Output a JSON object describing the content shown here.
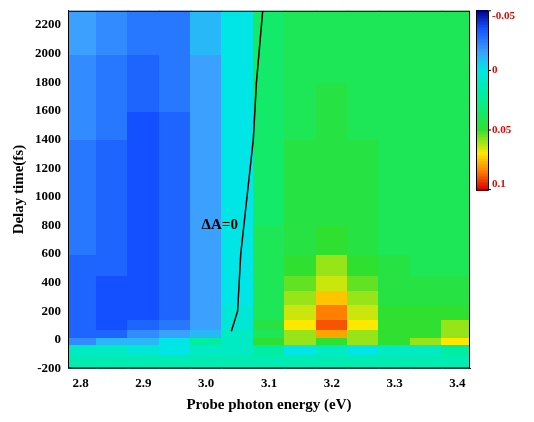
{
  "chart_data": {
    "type": "heatmap",
    "x_label": "Probe photon energy (eV)",
    "y_label": "Delay time(fs)",
    "xlim": [
      2.78,
      3.42
    ],
    "xticks": [
      2.8,
      2.9,
      {
        "value": 3,
        "label": "3.0"
      },
      3.1,
      3.2,
      3.3,
      3.4
    ],
    "ylim": [
      -200,
      2300
    ],
    "yticks": [
      -200,
      0,
      200,
      400,
      600,
      800,
      1000,
      1200,
      1400,
      1600,
      1800,
      2000,
      2200
    ],
    "x": [
      2.8,
      2.85,
      2.9,
      2.95,
      3.0,
      3.05,
      3.1,
      3.15,
      3.2,
      3.25,
      3.3,
      3.35,
      3.4
    ],
    "y": [
      -150,
      -50,
      0,
      50,
      100,
      200,
      300,
      400,
      500,
      700,
      900,
      1100,
      1300,
      1500,
      1700,
      1900,
      2100,
      2250
    ],
    "z": [
      [
        0.015,
        0.015,
        0.015,
        0.015,
        0.015,
        0.015,
        0.015,
        0.015,
        0.015,
        0.015,
        0.015,
        0.015,
        0.015
      ],
      [
        0.01,
        0.01,
        0.005,
        0.0,
        0.01,
        0.01,
        0.02,
        0.0,
        0.01,
        0.0,
        0.01,
        0.01,
        0.02
      ],
      [
        -0.02,
        -0.01,
        -0.01,
        0.0,
        0.02,
        0.01,
        0.05,
        0.06,
        0.05,
        0.06,
        0.05,
        0.06,
        0.07
      ],
      [
        -0.03,
        -0.03,
        -0.02,
        -0.015,
        -0.01,
        0.01,
        0.04,
        0.06,
        0.08,
        0.06,
        0.05,
        0.05,
        0.06
      ],
      [
        -0.03,
        -0.035,
        -0.03,
        -0.025,
        -0.015,
        0.005,
        0.045,
        0.07,
        0.09,
        0.07,
        0.05,
        0.05,
        0.06
      ],
      [
        -0.03,
        -0.035,
        -0.035,
        -0.03,
        -0.015,
        0.005,
        0.04,
        0.065,
        0.085,
        0.065,
        0.05,
        0.05,
        0.05
      ],
      [
        -0.03,
        -0.035,
        -0.035,
        -0.03,
        -0.015,
        0.0,
        0.04,
        0.06,
        0.075,
        0.06,
        0.045,
        0.045,
        0.045
      ],
      [
        -0.03,
        -0.035,
        -0.035,
        -0.03,
        -0.015,
        0.0,
        0.04,
        0.055,
        0.065,
        0.055,
        0.045,
        0.045,
        0.045
      ],
      [
        -0.03,
        -0.03,
        -0.035,
        -0.03,
        -0.015,
        0.0,
        0.04,
        0.05,
        0.06,
        0.05,
        0.045,
        0.04,
        0.04
      ],
      [
        -0.025,
        -0.03,
        -0.035,
        -0.03,
        -0.015,
        0.0,
        0.04,
        0.045,
        0.05,
        0.045,
        0.04,
        0.04,
        0.04
      ],
      [
        -0.025,
        -0.03,
        -0.035,
        -0.03,
        -0.015,
        0.0,
        0.035,
        0.045,
        0.045,
        0.045,
        0.04,
        0.04,
        0.04
      ],
      [
        -0.025,
        -0.03,
        -0.035,
        -0.03,
        -0.015,
        0.0,
        0.035,
        0.045,
        0.045,
        0.045,
        0.04,
        0.04,
        0.04
      ],
      [
        -0.025,
        -0.03,
        -0.035,
        -0.03,
        -0.015,
        0.0,
        0.035,
        0.045,
        0.045,
        0.045,
        0.04,
        0.04,
        0.04
      ],
      [
        -0.02,
        -0.025,
        -0.035,
        -0.03,
        -0.015,
        0.0,
        0.035,
        0.04,
        0.045,
        0.04,
        0.04,
        0.04,
        0.04
      ],
      [
        -0.02,
        -0.025,
        -0.03,
        -0.025,
        -0.015,
        0.0,
        0.035,
        0.04,
        0.045,
        0.04,
        0.04,
        0.04,
        0.04
      ],
      [
        -0.02,
        -0.025,
        -0.03,
        -0.025,
        -0.015,
        0.0,
        0.035,
        0.04,
        0.04,
        0.04,
        0.04,
        0.04,
        0.04
      ],
      [
        -0.015,
        -0.02,
        -0.025,
        -0.025,
        -0.01,
        0.0,
        0.035,
        0.04,
        0.04,
        0.04,
        0.04,
        0.04,
        0.04
      ],
      [
        -0.015,
        -0.02,
        -0.025,
        -0.025,
        -0.01,
        0.0,
        0.035,
        0.04,
        0.04,
        0.04,
        0.04,
        0.04,
        0.04
      ]
    ],
    "colorbar": {
      "range": [
        -0.05,
        0.1
      ],
      "ticks": [
        -0.05,
        0,
        0.05,
        0.1
      ]
    },
    "contour": {
      "label": "ΔA=0",
      "color": "#000000",
      "x": [
        3.04,
        3.05,
        3.055,
        3.065,
        3.075,
        3.08,
        3.09
      ],
      "y": [
        60,
        200,
        600,
        1000,
        1400,
        1800,
        2300
      ]
    }
  }
}
